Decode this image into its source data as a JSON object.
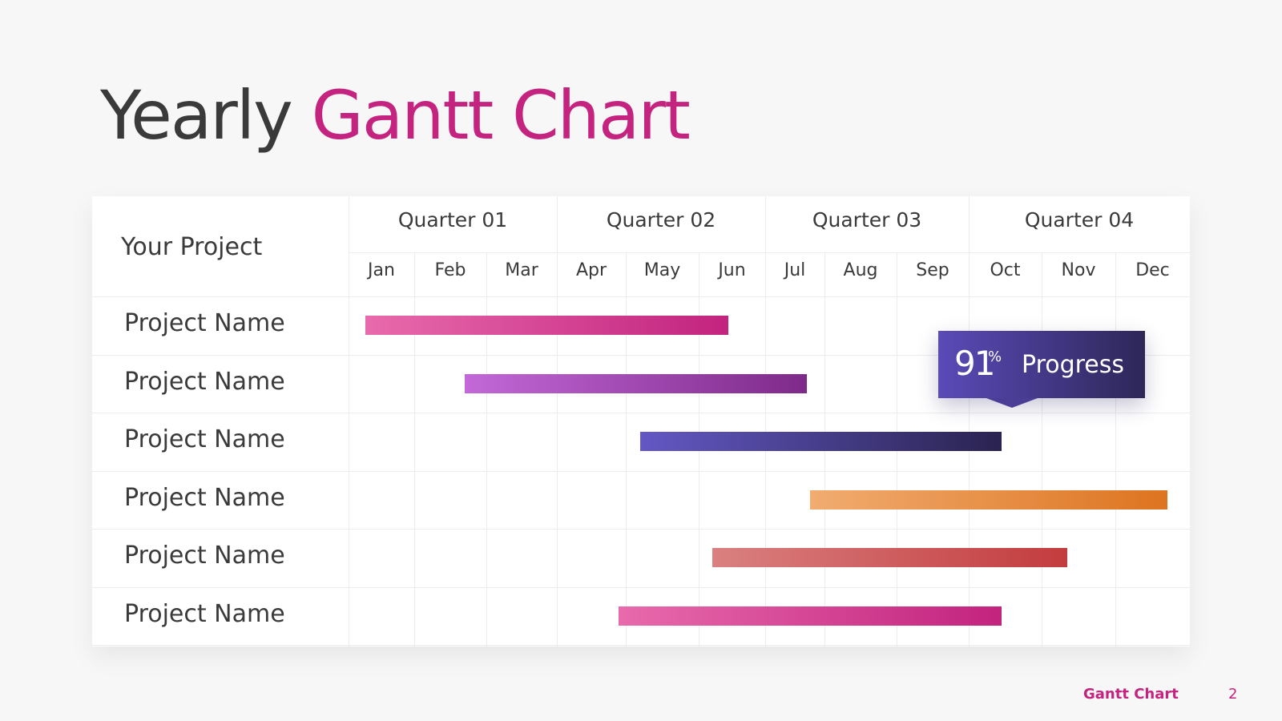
{
  "title": {
    "part1": "Yearly",
    "part2": "Gantt Chart"
  },
  "colors": {
    "accent": "#c4247f",
    "text": "#3a3a3a",
    "background": "#f7f7f7"
  },
  "chart_data": {
    "type": "gantt",
    "corner_label": "Your Project",
    "quarters": [
      "Quarter 01",
      "Quarter 02",
      "Quarter 03",
      "Quarter 04"
    ],
    "months": [
      "Jan",
      "Feb",
      "Mar",
      "Apr",
      "May",
      "Jun",
      "Jul",
      "Aug",
      "Sep",
      "Oct",
      "Nov",
      "Dec"
    ],
    "tasks": [
      {
        "name": "Project Name",
        "start": 0.25,
        "end": 5.45,
        "colors": [
          "#e86aac",
          "#c2237e"
        ]
      },
      {
        "name": "Project Name",
        "start": 1.7,
        "end": 6.7,
        "colors": [
          "#c368d8",
          "#7e2a8a"
        ]
      },
      {
        "name": "Project Name",
        "start": 4.2,
        "end": 9.45,
        "colors": [
          "#6358c4",
          "#2a2350"
        ]
      },
      {
        "name": "Project Name",
        "start": 6.75,
        "end": 11.7,
        "colors": [
          "#f1ac70",
          "#dd7420"
        ]
      },
      {
        "name": "Project Name",
        "start": 5.2,
        "end": 10.35,
        "colors": [
          "#da8080",
          "#c33c3e"
        ]
      },
      {
        "name": "Project Name",
        "start": 3.9,
        "end": 9.45,
        "colors": [
          "#e86aac",
          "#c2237e"
        ]
      }
    ],
    "callout": {
      "value": "91",
      "unit": "%",
      "label": "Progress"
    }
  },
  "footer": {
    "label": "Gantt Chart",
    "page": "2"
  }
}
